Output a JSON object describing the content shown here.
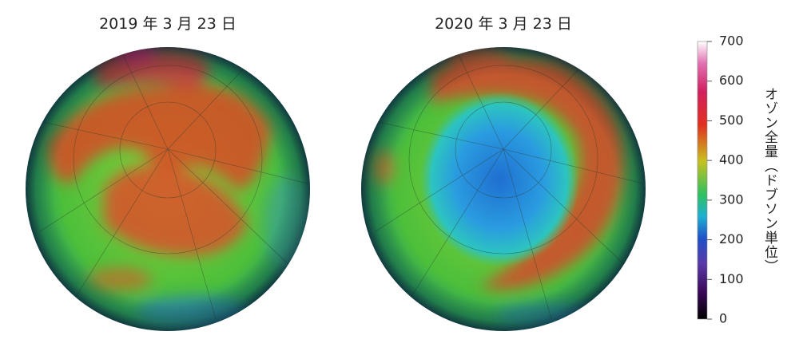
{
  "panels": [
    {
      "title": "2019 年 3 月 23 日"
    },
    {
      "title": "2020 年 3 月 23 日"
    }
  ],
  "colorbar": {
    "label": "オゾン全量（ドブソン単位）",
    "lim": [
      0,
      700
    ],
    "ticks": [
      0,
      100,
      200,
      300,
      400,
      500,
      600,
      700
    ]
  }
}
